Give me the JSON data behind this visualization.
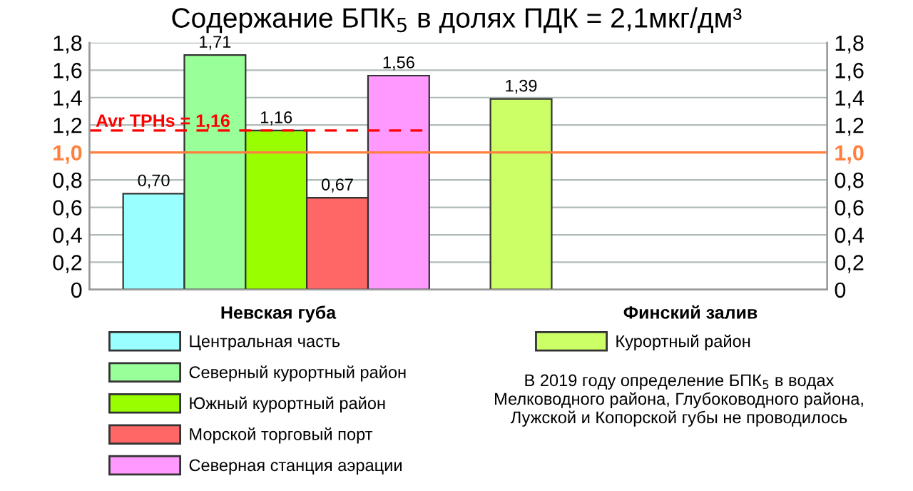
{
  "chart_data": {
    "type": "bar",
    "title": "Содержание БПК$_{5}$ в долях ПДК = 2,1мкг/дм³",
    "categories": [
      null,
      null,
      null,
      null,
      null,
      null,
      null,
      null,
      null,
      null,
      null
    ],
    "series": [
      {
        "name": "Центральная часть",
        "color": "#99ffff",
        "values": [
          0.7,
          null,
          null,
          null,
          null,
          null,
          null,
          null,
          null,
          null,
          null
        ],
        "value_labels": [
          "0,70",
          null,
          null,
          null,
          null,
          null,
          null,
          null,
          null,
          null,
          null
        ]
      },
      {
        "name": "Северный курортный район",
        "color": "#99ff99",
        "values": [
          null,
          1.71,
          null,
          null,
          null,
          null,
          null,
          null,
          null,
          null,
          null
        ],
        "value_labels": [
          null,
          "1,71",
          null,
          null,
          null,
          null,
          null,
          null,
          null,
          null,
          null
        ]
      },
      {
        "name": "Южный курортный район",
        "color": "#99ff00",
        "values": [
          null,
          null,
          1.16,
          null,
          null,
          null,
          null,
          null,
          null,
          null,
          null
        ],
        "value_labels": [
          null,
          null,
          "1,16",
          null,
          null,
          null,
          null,
          null,
          null,
          null,
          null
        ]
      },
      {
        "name": "Морской торговый порт",
        "color": "#ff6666",
        "values": [
          null,
          null,
          null,
          0.67,
          null,
          null,
          null,
          null,
          null,
          null,
          null
        ],
        "value_labels": [
          null,
          null,
          null,
          "0,67",
          null,
          null,
          null,
          null,
          null,
          null,
          null
        ]
      },
      {
        "name": "Северная станция аэрации",
        "color": "#ff99ff",
        "values": [
          null,
          null,
          null,
          null,
          1.56,
          null,
          null,
          null,
          null,
          null,
          null
        ],
        "value_labels": [
          null,
          null,
          null,
          null,
          "1,56",
          null,
          null,
          null,
          null,
          null,
          null
        ]
      },
      {
        "name": "Курортный район",
        "color": "#ccff66",
        "values": [
          null,
          null,
          null,
          null,
          null,
          null,
          1.39,
          null,
          null,
          null,
          null
        ],
        "value_labels": [
          null,
          null,
          null,
          null,
          null,
          null,
          "1,39",
          null,
          null,
          null,
          null
        ]
      }
    ],
    "ylim": [
      0,
      1.8
    ],
    "yticks": [
      0,
      {
        "value": 0.2,
        "label": "0,2"
      },
      {
        "value": 0.4,
        "label": "0,4"
      },
      {
        "value": 0.6,
        "label": "0,6"
      },
      {
        "value": 0.8,
        "label": "0,8"
      },
      {
        "value": 1.0,
        "label": "1,0"
      },
      {
        "value": 1.2,
        "label": "1,2"
      },
      {
        "value": 1.4,
        "label": "1,4"
      },
      {
        "value": 1.6,
        "label": "1,6"
      },
      {
        "value": 1.8,
        "label": "1,8"
      }
    ],
    "y2lim": [
      0,
      1.8
    ],
    "y2ticks": [
      0,
      {
        "value": 0.2,
        "label": "0,2"
      },
      {
        "value": 0.4,
        "label": "0,4"
      },
      {
        "value": 0.6,
        "label": "0,6"
      },
      {
        "value": 0.8,
        "label": "0,8"
      },
      {
        "value": 1.0,
        "label": "1,0"
      },
      {
        "value": 1.2,
        "label": "1,2"
      },
      {
        "value": 1.4,
        "label": "1,4"
      },
      {
        "value": 1.6,
        "label": "1,6"
      },
      {
        "value": 1.8,
        "label": "1,8"
      }
    ],
    "ref_lines": [
      {
        "axis": "y",
        "value": 1.0,
        "color": "#ff7f3f",
        "line_style": "solid"
      },
      {
        "axis": "y",
        "value": 1.16,
        "label": "Avr TPHs = 1,16",
        "color": "#ff0000",
        "line_style": "dashed"
      }
    ],
    "annotations": [
      "Невская губа",
      "Финский залив",
      "В 2019 году определение БПК$_{5}$ в водах Мелководного района, Глубоководного района, Лужской и Копорской губы не проводилось"
    ],
    "grid": "y",
    "legend": "bottom"
  }
}
